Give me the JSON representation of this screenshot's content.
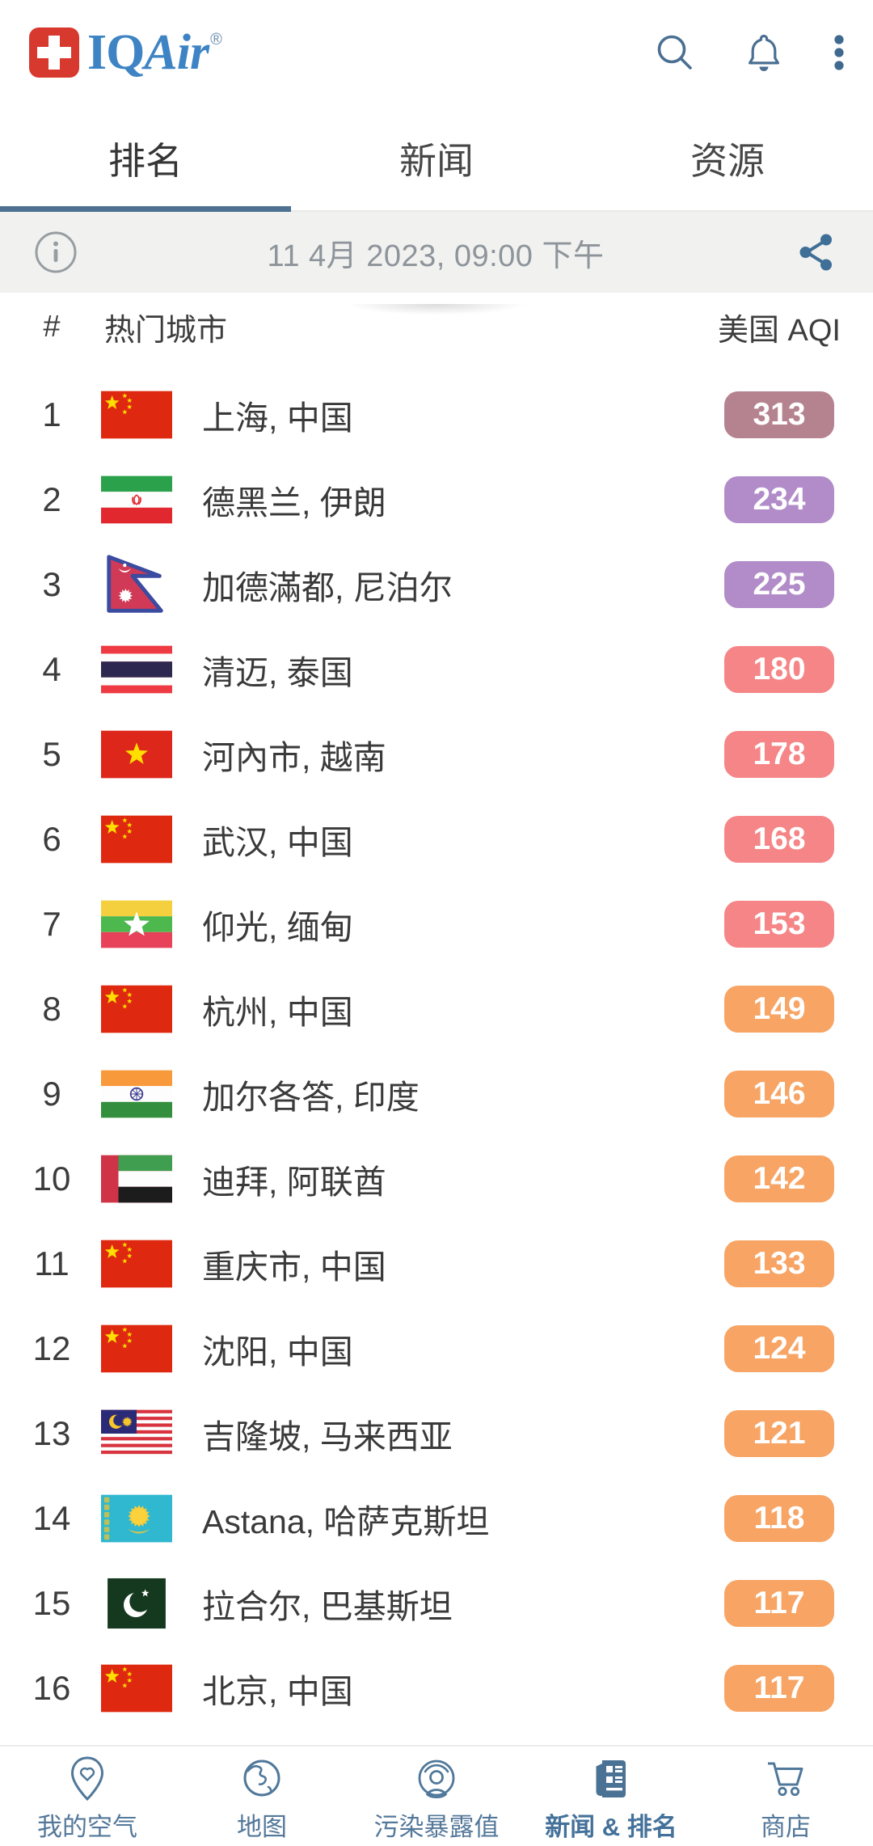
{
  "colors": {
    "accent_blue": "#4e7191",
    "logo_blue": "#3e84c4",
    "logo_red": "#d8392e",
    "aqi_hazard_mauve": "#b5838f",
    "aqi_very_unhealthy_purple": "#b18cc8",
    "aqi_unhealthy_red": "#f58586",
    "aqi_usg_orange": "#f7a464"
  },
  "header": {
    "logo_iq": "IQ",
    "logo_air": "Air",
    "registered": "®",
    "icons": [
      "search-icon",
      "bell-icon",
      "overflow-menu-icon"
    ]
  },
  "tabs": [
    {
      "label": "排名",
      "active": true
    },
    {
      "label": "新闻",
      "active": false
    },
    {
      "label": "资源",
      "active": false
    }
  ],
  "date_bar": {
    "date": "11 4月 2023, 09:00 下午",
    "left_icon": "info-icon",
    "right_icon": "share-icon"
  },
  "table": {
    "rank_header": "#",
    "city_header": "热门城市",
    "aqi_header": "美国 AQI",
    "rows": [
      {
        "rank": "1",
        "flag": "cn",
        "flag_name": "china-flag",
        "city": "上海, 中国",
        "aqi": "313",
        "color": "#b5838f"
      },
      {
        "rank": "2",
        "flag": "ir",
        "flag_name": "iran-flag",
        "city": "德黑兰, 伊朗",
        "aqi": "234",
        "color": "#b18cc8"
      },
      {
        "rank": "3",
        "flag": "np",
        "flag_name": "nepal-flag",
        "city": "加德滿都, 尼泊尔",
        "aqi": "225",
        "color": "#b18cc8"
      },
      {
        "rank": "4",
        "flag": "th",
        "flag_name": "thailand-flag",
        "city": "清迈, 泰国",
        "aqi": "180",
        "color": "#f58586"
      },
      {
        "rank": "5",
        "flag": "vn",
        "flag_name": "vietnam-flag",
        "city": "河內市, 越南",
        "aqi": "178",
        "color": "#f58586"
      },
      {
        "rank": "6",
        "flag": "cn",
        "flag_name": "china-flag",
        "city": "武汉, 中国",
        "aqi": "168",
        "color": "#f58586"
      },
      {
        "rank": "7",
        "flag": "mm",
        "flag_name": "myanmar-flag",
        "city": "仰光, 缅甸",
        "aqi": "153",
        "color": "#f58586"
      },
      {
        "rank": "8",
        "flag": "cn",
        "flag_name": "china-flag",
        "city": "杭州, 中国",
        "aqi": "149",
        "color": "#f7a464"
      },
      {
        "rank": "9",
        "flag": "in",
        "flag_name": "india-flag",
        "city": "加尔各答, 印度",
        "aqi": "146",
        "color": "#f7a464"
      },
      {
        "rank": "10",
        "flag": "ae",
        "flag_name": "uae-flag",
        "city": "迪拜, 阿联酋",
        "aqi": "142",
        "color": "#f7a464"
      },
      {
        "rank": "11",
        "flag": "cn",
        "flag_name": "china-flag",
        "city": "重庆市, 中国",
        "aqi": "133",
        "color": "#f7a464"
      },
      {
        "rank": "12",
        "flag": "cn",
        "flag_name": "china-flag",
        "city": "沈阳, 中国",
        "aqi": "124",
        "color": "#f7a464"
      },
      {
        "rank": "13",
        "flag": "my",
        "flag_name": "malaysia-flag",
        "city": "吉隆坡, 马来西亚",
        "aqi": "121",
        "color": "#f7a464"
      },
      {
        "rank": "14",
        "flag": "kz",
        "flag_name": "kazakhstan-flag",
        "city": "Astana, 哈萨克斯坦",
        "aqi": "118",
        "color": "#f7a464"
      },
      {
        "rank": "15",
        "flag": "pk",
        "flag_name": "pakistan-flag",
        "city": "拉合尔, 巴基斯坦",
        "aqi": "117",
        "color": "#f7a464"
      },
      {
        "rank": "16",
        "flag": "cn",
        "flag_name": "china-flag",
        "city": "北京, 中国",
        "aqi": "117",
        "color": "#f7a464"
      }
    ]
  },
  "bottom_nav": {
    "items": [
      {
        "label": "我的空气",
        "icon": "pin-heart-icon",
        "active": false
      },
      {
        "label": "地图",
        "icon": "globe-icon",
        "active": false
      },
      {
        "label": "污染暴露值",
        "icon": "exposure-icon",
        "active": false
      },
      {
        "label": "新闻 & 排名",
        "icon": "news-icon",
        "active": true
      },
      {
        "label": "商店",
        "icon": "cart-icon",
        "active": false
      }
    ]
  }
}
